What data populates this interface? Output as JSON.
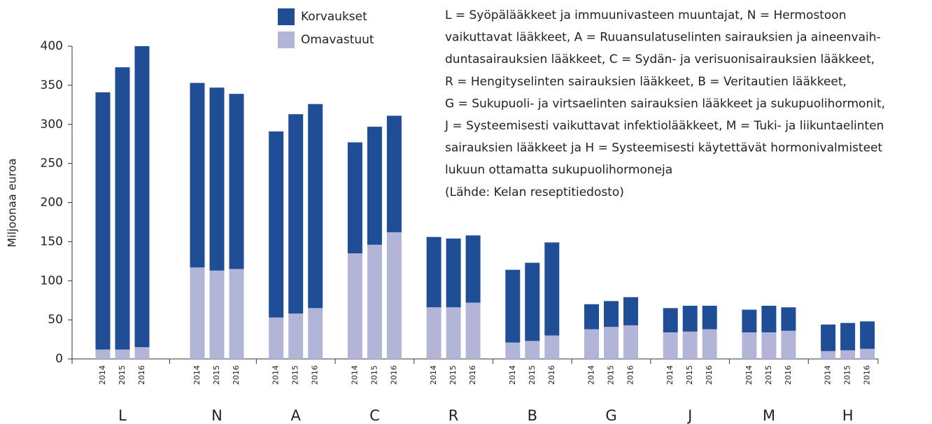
{
  "chart_data": {
    "type": "bar",
    "stacked": true,
    "y_label": "Miljoonaa euroa",
    "groups": [
      "L",
      "N",
      "A",
      "C",
      "R",
      "B",
      "G",
      "J",
      "M",
      "H"
    ],
    "years": [
      "2014",
      "2015",
      "2016"
    ],
    "series": [
      {
        "name": "Omavastuut",
        "color": "#b3b5d8",
        "values": [
          [
            12,
            12,
            15
          ],
          [
            117,
            113,
            115
          ],
          [
            53,
            58,
            65
          ],
          [
            135,
            146,
            162
          ],
          [
            66,
            66,
            72
          ],
          [
            21,
            23,
            30
          ],
          [
            38,
            41,
            43
          ],
          [
            34,
            35,
            38
          ],
          [
            34,
            34,
            36
          ],
          [
            10,
            11,
            13
          ]
        ]
      },
      {
        "name": "Korvaukset",
        "color": "#1f4e96",
        "values": [
          [
            329,
            361,
            385
          ],
          [
            236,
            234,
            224
          ],
          [
            238,
            255,
            261
          ],
          [
            142,
            151,
            149
          ],
          [
            90,
            88,
            86
          ],
          [
            93,
            100,
            119
          ],
          [
            32,
            33,
            36
          ],
          [
            31,
            33,
            30
          ],
          [
            29,
            34,
            30
          ],
          [
            34,
            35,
            35
          ]
        ]
      }
    ],
    "ylim": [
      0,
      400
    ],
    "yticks": [
      0,
      50,
      100,
      150,
      200,
      250,
      300,
      350,
      400
    ],
    "note": [
      "L = Syöpälääkkeet ja immuunivasteen muuntajat, N = Hermostoon",
      "vaikuttavat lääkkeet, A = Ruuansulatuselinten sairauksien ja aineenvaih-",
      "duntasairauksien lääkkeet, C = Sydän- ja verisuonisairauksien lääkkeet,",
      "R = Hengityselinten sairauksien lääkkeet, B = Veritautien lääkkeet,",
      "G = Sukupuoli- ja virtsaelinten sairauksien lääkkeet ja sukupuolihormonit,",
      "J = Systeemisesti vaikuttavat infektiolääkkeet, M = Tuki- ja liikuntaelinten",
      "sairauksien lääkkeet ja H = Systeemisesti käytettävät hormonivalmisteet",
      "lukuun ottamatta sukupuolihormoneja"
    ],
    "source": "(Lähde: Kelan reseptitiedosto)"
  }
}
